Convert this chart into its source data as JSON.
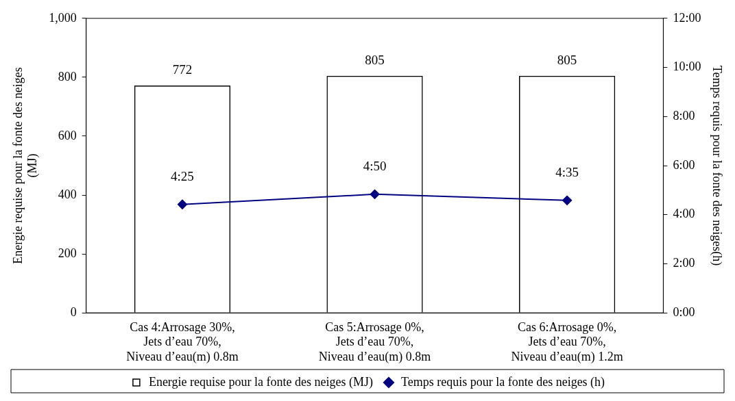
{
  "chart_data": {
    "type": "bar",
    "categories": [
      "Cas 4:Arrosage 30%,\nJets d’eau 70%,\nNiveau d’eau(m) 0.8m",
      "Cas 5:Arrosage 0%,\nJets d’eau 70%,\nNiveau d’eau(m) 0.8m",
      "Cas 6:Arrosage 0%,\nJets d’eau 70%,\nNiveau d’eau(m) 1.2m"
    ],
    "series": [
      {
        "name": "Energie requise pour la fonte des neiges (MJ)",
        "color": "#000000",
        "values": [
          772,
          805,
          805
        ],
        "value_labels": [
          "772",
          "805",
          "805"
        ]
      },
      {
        "name": "Temps requis pour la fonte des neiges (h)",
        "type": "line",
        "axis": "y2",
        "color": "#000080",
        "values": [
          4.4167,
          4.8333,
          4.5833
        ],
        "value_labels": [
          "4:25",
          "4:50",
          "4:35"
        ]
      }
    ],
    "ylabel": "Energie requise pour la fonte des neiges\n(MJ)",
    "y2label": "Temps requis pour la fonte des neiges(h)",
    "ylim": [
      0,
      1000
    ],
    "yticks": [
      0,
      200,
      400,
      600,
      800,
      {
        "value": 1000,
        "label": "1,000"
      }
    ],
    "y2lim": [
      0,
      12
    ],
    "y2ticks": [
      {
        "value": 0,
        "label": "0:00"
      },
      {
        "value": 2,
        "label": "2:00"
      },
      {
        "value": 4,
        "label": "4:00"
      },
      {
        "value": 6,
        "label": "6:00"
      },
      {
        "value": 8,
        "label": "8:00"
      },
      {
        "value": 10,
        "label": "10:00"
      },
      {
        "value": 12,
        "label": "12:00"
      }
    ],
    "marker": "diamond",
    "grid": false,
    "legend": "bottom"
  }
}
